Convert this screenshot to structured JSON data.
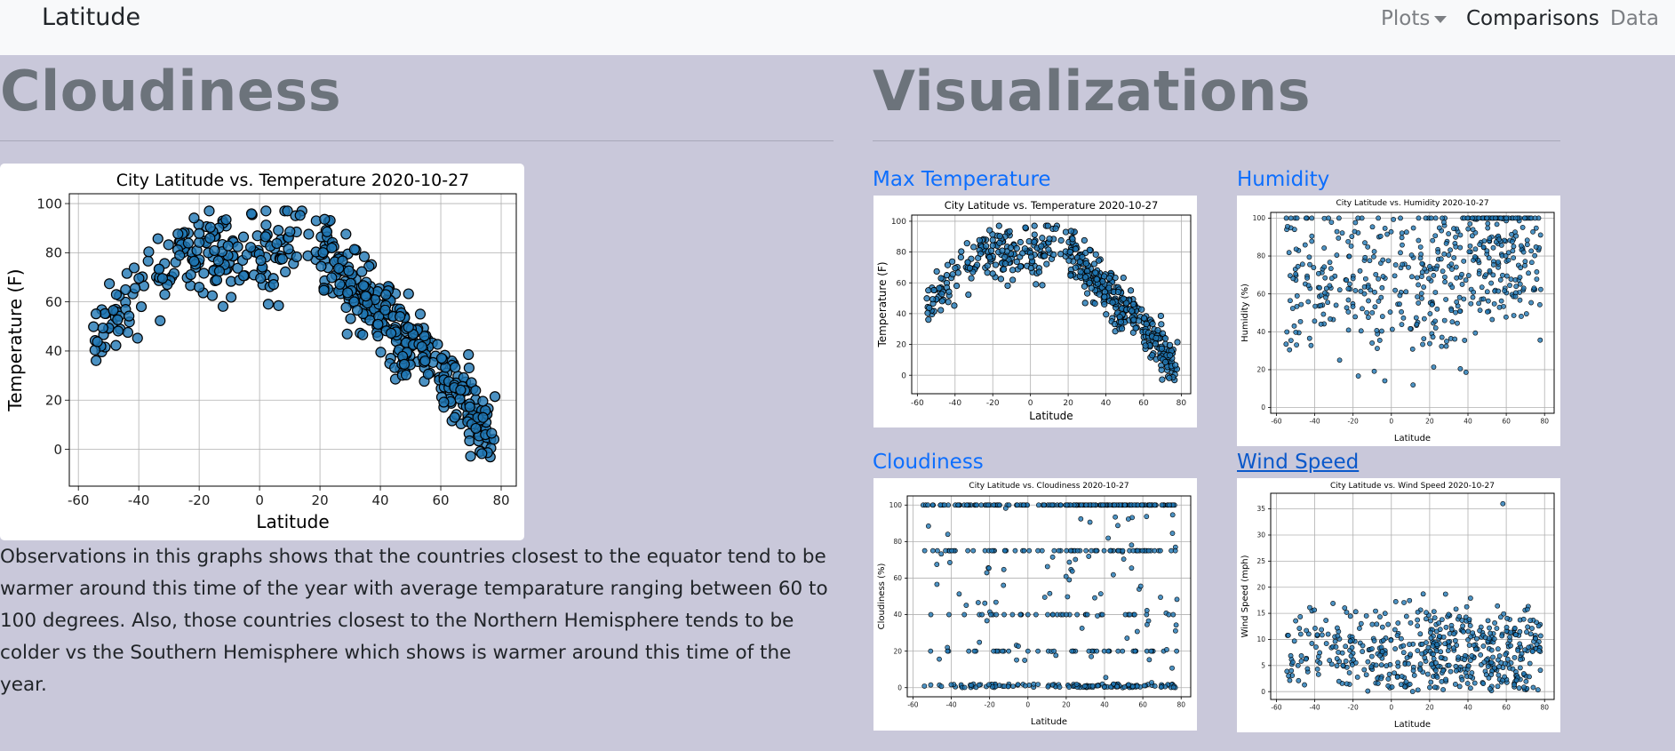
{
  "navbar": {
    "brand": "Latitude",
    "items": [
      {
        "label": "Plots",
        "dropdown": true
      },
      {
        "label": "Comparisons",
        "active": true
      },
      {
        "label": "Data"
      }
    ]
  },
  "main": {
    "title": "Cloudiness",
    "paragraph": "Observations in this graphs shows that the countries closest to the equator tend to be warmer around this time of the year with average temparature ranging between 60 to 100 degrees. Also, those countries closest to the Northern Hemisphere tends to be colder vs the Southern Hemisphere which shows is warmer around this time of the year."
  },
  "sidebar": {
    "title": "Visualizations",
    "links": {
      "max_temperature": "Max Temperature",
      "humidity": "Humidity",
      "cloudiness": "Cloudiness",
      "wind_speed": "Wind Speed"
    }
  },
  "colors": {
    "marker_fill": "#1f77b4",
    "marker_edge": "#000000",
    "link": "#0d6efd",
    "background": "#c9c8da"
  },
  "chart_data": [
    {
      "id": "main-temperature",
      "type": "scatter",
      "title": "City Latitude vs. Temperature 2020-10-27",
      "xlabel": "Latitude",
      "ylabel": "Temperature (F)",
      "xlim": [
        -63,
        85
      ],
      "ylim": [
        -15,
        104
      ],
      "xticks": [
        -60,
        -40,
        -20,
        0,
        20,
        40,
        60,
        80
      ],
      "yticks": [
        0,
        20,
        40,
        60,
        80,
        100
      ],
      "grid": true,
      "points_generated": {
        "model": "temperature",
        "n": 520,
        "seed": 7
      }
    },
    {
      "id": "thumb-temperature",
      "type": "scatter",
      "title": "City Latitude vs. Temperature 2020-10-27",
      "xlabel": "Latitude",
      "ylabel": "Temperature (F)",
      "xlim": [
        -63,
        85
      ],
      "ylim": [
        -12,
        104
      ],
      "xticks": [
        -60,
        -40,
        -20,
        0,
        20,
        40,
        60,
        80
      ],
      "yticks": [
        0,
        20,
        40,
        60,
        80,
        100
      ],
      "grid": true,
      "points_generated": {
        "model": "temperature",
        "n": 520,
        "seed": 7
      }
    },
    {
      "id": "thumb-humidity",
      "type": "scatter",
      "title": "City Latitude vs. Humidity 2020-10-27",
      "xlabel": "Latitude",
      "ylabel": "Humidity (%)",
      "xlim": [
        -63,
        85
      ],
      "ylim": [
        -3,
        103
      ],
      "xticks": [
        -60,
        -40,
        -20,
        0,
        20,
        40,
        60,
        80
      ],
      "yticks": [
        0,
        20,
        40,
        60,
        80,
        100
      ],
      "grid": true,
      "points_generated": {
        "model": "humidity",
        "n": 520,
        "seed": 11
      }
    },
    {
      "id": "thumb-cloudiness",
      "type": "scatter",
      "title": "City Latitude vs. Cloudiness 2020-10-27",
      "xlabel": "Latitude",
      "ylabel": "Cloudiness (%)",
      "xlim": [
        -63,
        85
      ],
      "ylim": [
        -5,
        105
      ],
      "xticks": [
        -60,
        -40,
        -20,
        0,
        20,
        40,
        60,
        80
      ],
      "yticks": [
        0,
        20,
        40,
        60,
        80,
        100
      ],
      "grid": true,
      "points_generated": {
        "model": "cloudiness",
        "n": 520,
        "seed": 13
      }
    },
    {
      "id": "thumb-wind",
      "type": "scatter",
      "title": "City Latitude vs. Wind Speed 2020-10-27",
      "xlabel": "Latitude",
      "ylabel": "Wind Speed (mph)",
      "xlim": [
        -63,
        85
      ],
      "ylim": [
        -1.5,
        38
      ],
      "xticks": [
        -60,
        -40,
        -20,
        0,
        20,
        40,
        60,
        80
      ],
      "yticks": [
        0,
        5,
        10,
        15,
        20,
        25,
        30,
        35
      ],
      "grid": true,
      "points_generated": {
        "model": "wind",
        "n": 520,
        "seed": 17
      }
    }
  ]
}
